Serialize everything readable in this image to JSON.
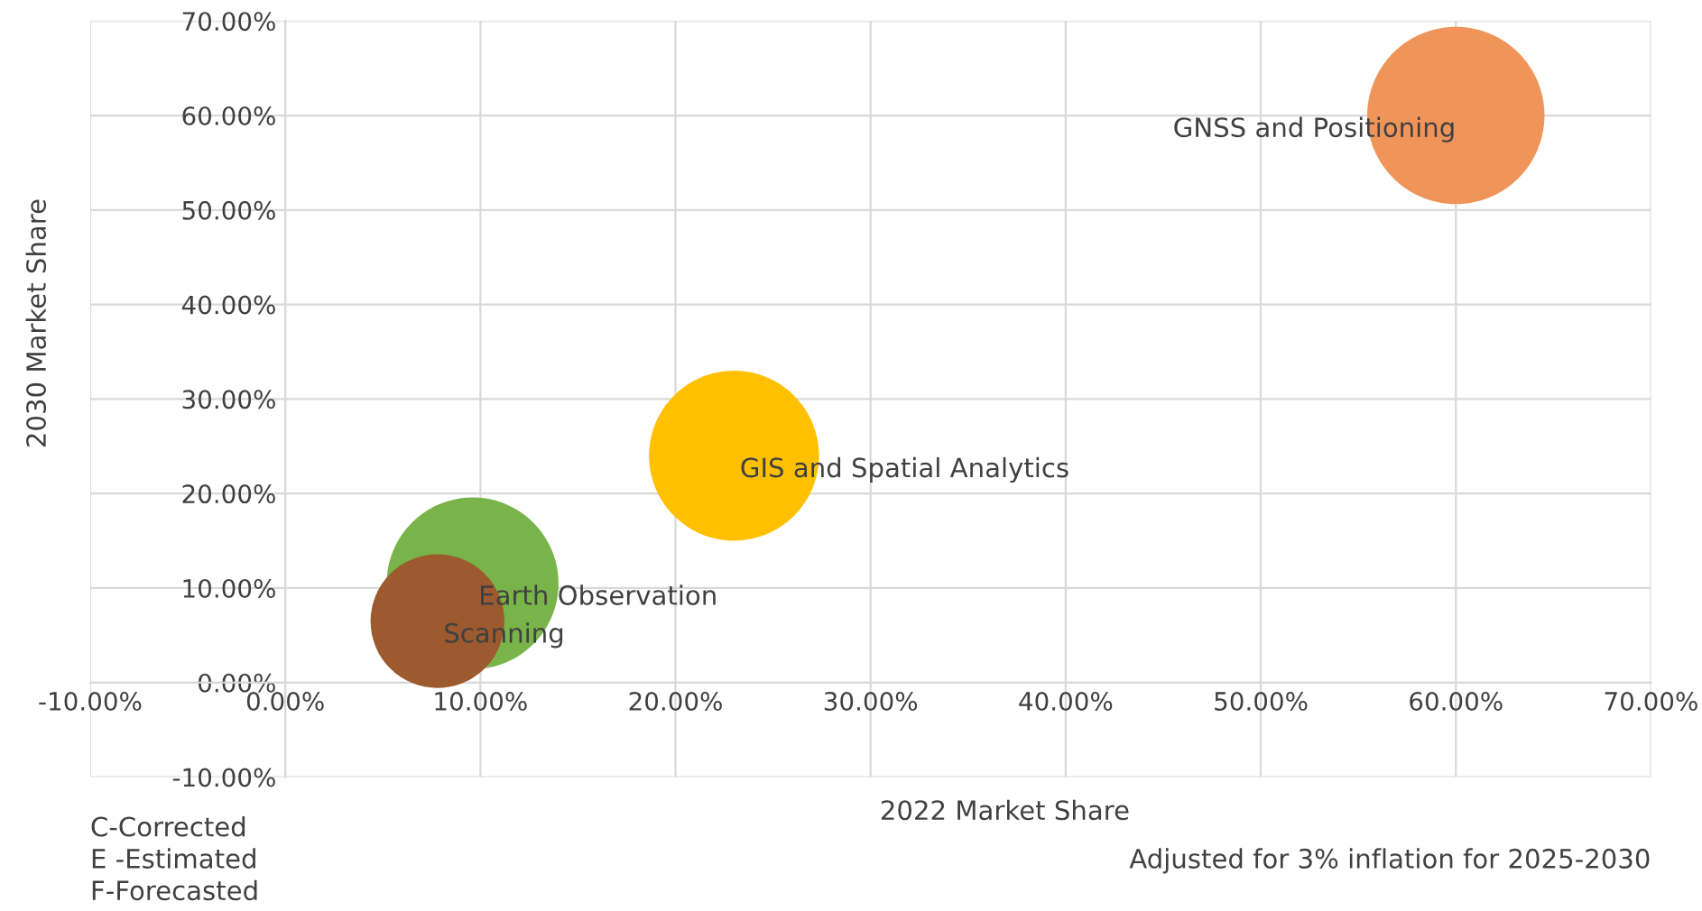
{
  "chart_data": {
    "type": "bubble",
    "xlabel": "2022 Market Share",
    "ylabel": "2030 Market Share",
    "series": [
      {
        "name": "GNSS and Positioning",
        "color": "#f0955a",
        "x": [
          60
        ],
        "values": [
          60
        ],
        "sizes": [
          1
        ]
      },
      {
        "name": "GIS and Spatial Analytics",
        "color": "#ffc000",
        "x": [
          23
        ],
        "values": [
          24
        ],
        "sizes": [
          0.92
        ]
      },
      {
        "name": "Earth Observation",
        "color": "#78b44a",
        "x": [
          9.6
        ],
        "values": [
          10.5
        ],
        "sizes": [
          0.94
        ]
      },
      {
        "name": "Scanning",
        "color": "#9c5a2e",
        "x": [
          7.8
        ],
        "values": [
          6.5
        ],
        "sizes": [
          0.57
        ]
      }
    ],
    "xlim": [
      -10,
      70
    ],
    "ylim": [
      -10,
      70
    ],
    "xticks": [
      {
        "value": -10,
        "label": "-10.00%"
      },
      {
        "value": 0,
        "label": "0.00%"
      },
      {
        "value": 10,
        "label": "10.00%"
      },
      {
        "value": 20,
        "label": "20.00%"
      },
      {
        "value": 30,
        "label": "30.00%"
      },
      {
        "value": 40,
        "label": "40.00%"
      },
      {
        "value": 50,
        "label": "50.00%"
      },
      {
        "value": 60,
        "label": "60.00%"
      },
      {
        "value": 70,
        "label": "70.00%"
      }
    ],
    "yticks": [
      {
        "value": -10,
        "label": "-10.00%"
      },
      {
        "value": 0,
        "label": "0.00%"
      },
      {
        "value": 10,
        "label": "10.00%"
      },
      {
        "value": 20,
        "label": "20.00%"
      },
      {
        "value": 30,
        "label": "30.00%"
      },
      {
        "value": 40,
        "label": "40.00%"
      },
      {
        "value": 50,
        "label": "50.00%"
      },
      {
        "value": 60,
        "label": "60.00%"
      },
      {
        "value": 70,
        "label": "70.00%"
      }
    ],
    "grid": true,
    "annotations": [
      "C-Corrected",
      "E -Estimated",
      "F-Forecasted",
      "Adjusted for 3% inflation for 2025-2030"
    ]
  }
}
